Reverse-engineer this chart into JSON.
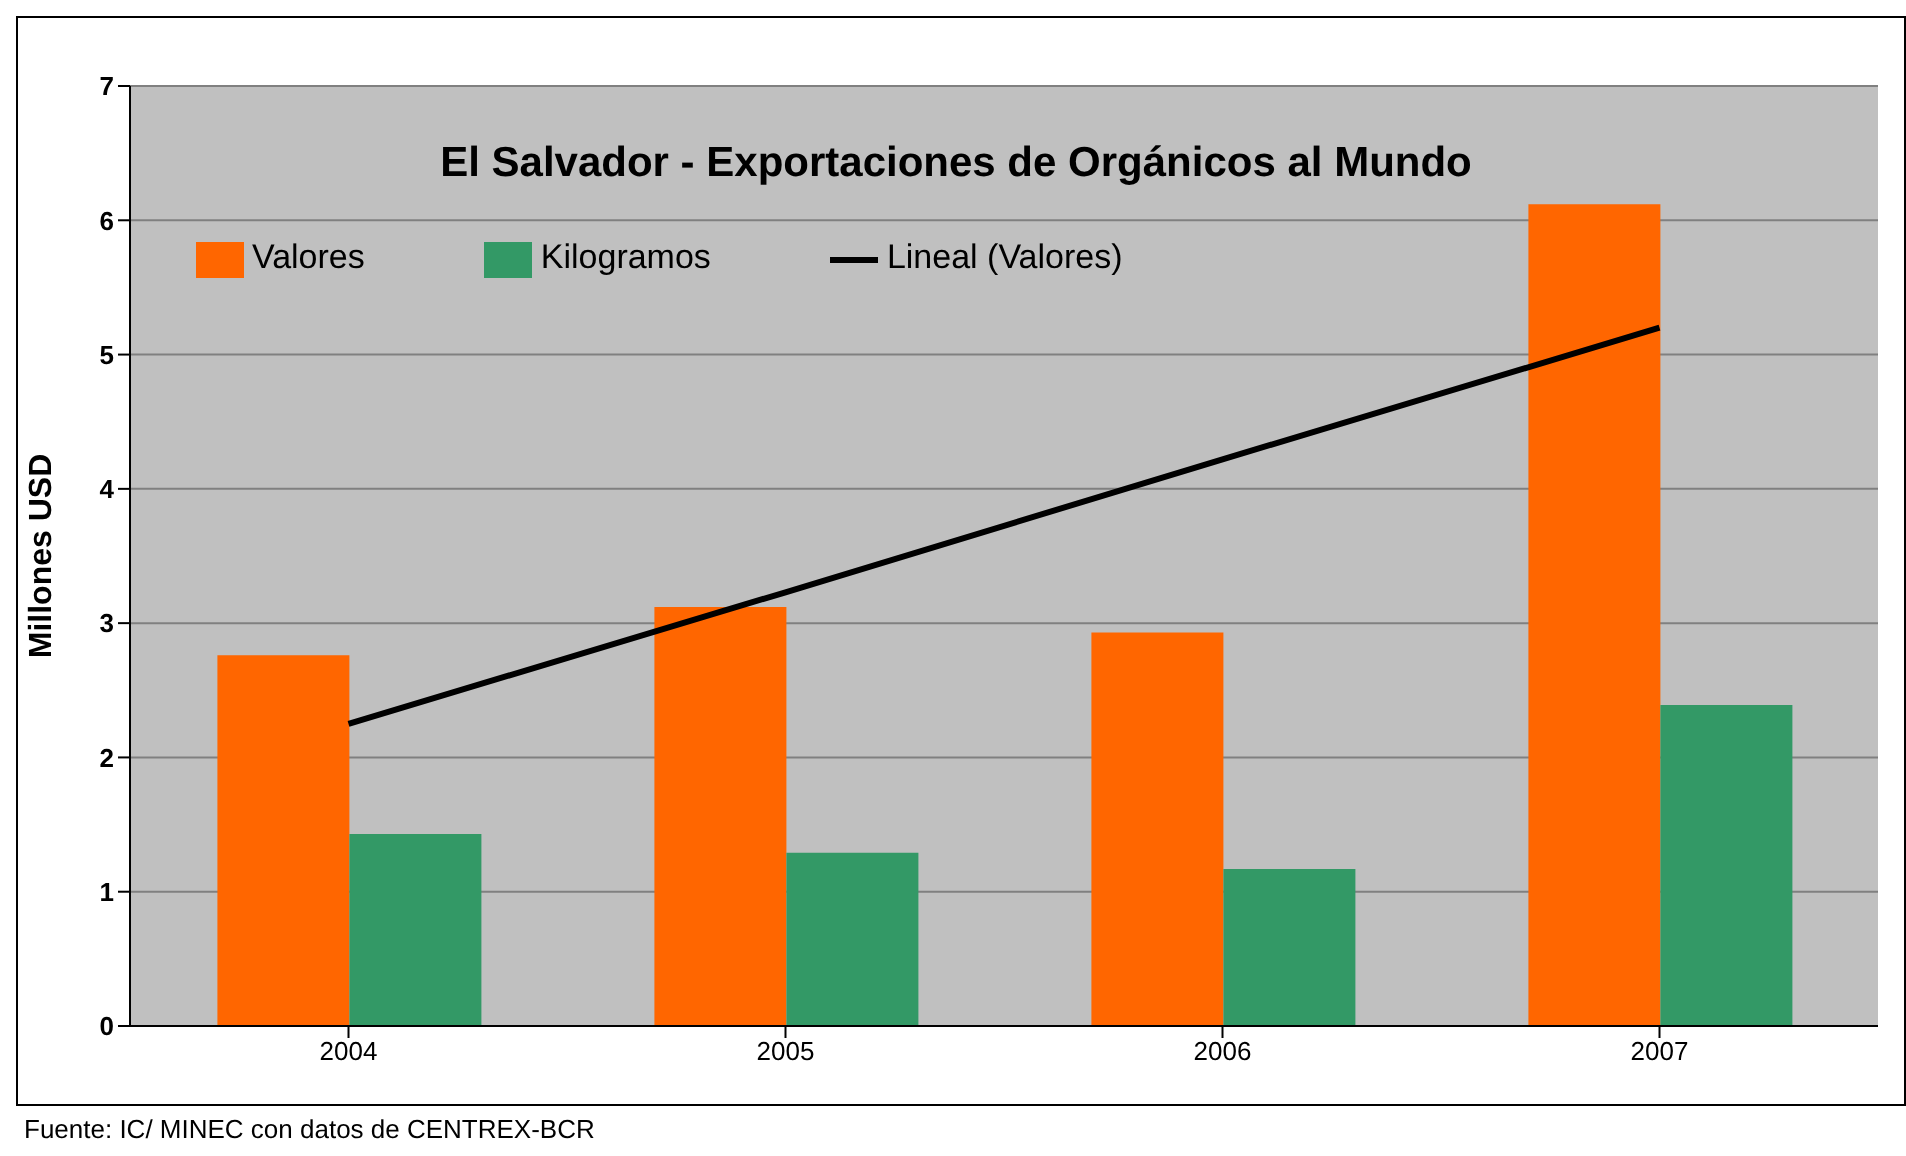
{
  "chart_data": {
    "type": "bar",
    "title": "El Salvador - Exportaciones de Orgánicos al Mundo",
    "ylabel": "Millones USD",
    "categories": [
      "2004",
      "2005",
      "2006",
      "2007"
    ],
    "series": [
      {
        "name": "Valores",
        "color": "#ff6600",
        "values": [
          2.76,
          3.12,
          2.93,
          6.12
        ]
      },
      {
        "name": "Kilogramos",
        "color": "#339966",
        "values": [
          1.43,
          1.29,
          1.17,
          2.39
        ]
      },
      {
        "name": "Lineal (Valores)",
        "type": "line",
        "color": "#000000",
        "values": [
          2.25,
          3.23,
          4.22,
          5.2
        ]
      }
    ],
    "ylim": [
      0,
      7
    ],
    "yticks": [
      0,
      1,
      2,
      3,
      4,
      5,
      6,
      7
    ],
    "grid": "y",
    "legend": "top left",
    "marker": "none",
    "annotations": [
      "Fuente: IC/ MINEC con datos de CENTREX-BCR"
    ]
  }
}
